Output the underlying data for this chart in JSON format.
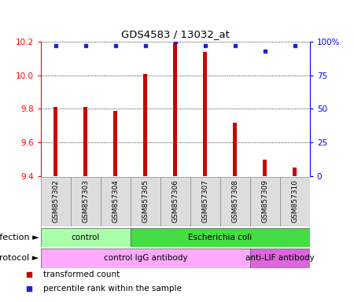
{
  "title": "GDS4583 / 13032_at",
  "samples": [
    "GSM857302",
    "GSM857303",
    "GSM857304",
    "GSM857305",
    "GSM857306",
    "GSM857307",
    "GSM857308",
    "GSM857309",
    "GSM857310"
  ],
  "red_values": [
    9.81,
    9.81,
    9.79,
    10.01,
    10.19,
    10.14,
    9.72,
    9.5,
    9.45
  ],
  "blue_values": [
    97,
    97,
    97,
    97,
    100,
    97,
    97,
    93,
    97
  ],
  "ylim_left": [
    9.4,
    10.2
  ],
  "ylim_right": [
    0,
    100
  ],
  "yticks_left": [
    9.4,
    9.6,
    9.8,
    10.0,
    10.2
  ],
  "yticks_right": [
    0,
    25,
    50,
    75,
    100
  ],
  "bar_color": "#cc0000",
  "dot_color": "#2222cc",
  "infection_groups": [
    {
      "label": "control",
      "start": 0,
      "end": 3,
      "color": "#aaffaa"
    },
    {
      "label": "Escherichia coli",
      "start": 3,
      "end": 9,
      "color": "#44dd44"
    }
  ],
  "protocol_groups": [
    {
      "label": "control IgG antibody",
      "start": 0,
      "end": 7,
      "color": "#ffaaff"
    },
    {
      "label": "anti-LIF antibody",
      "start": 7,
      "end": 9,
      "color": "#dd66dd"
    }
  ],
  "infection_label": "infection",
  "protocol_label": "protocol",
  "legend_red": "transformed count",
  "legend_blue": "percentile rank within the sample",
  "bar_width": 0.12,
  "grid_color": "black",
  "bg_color": "#dddddd"
}
